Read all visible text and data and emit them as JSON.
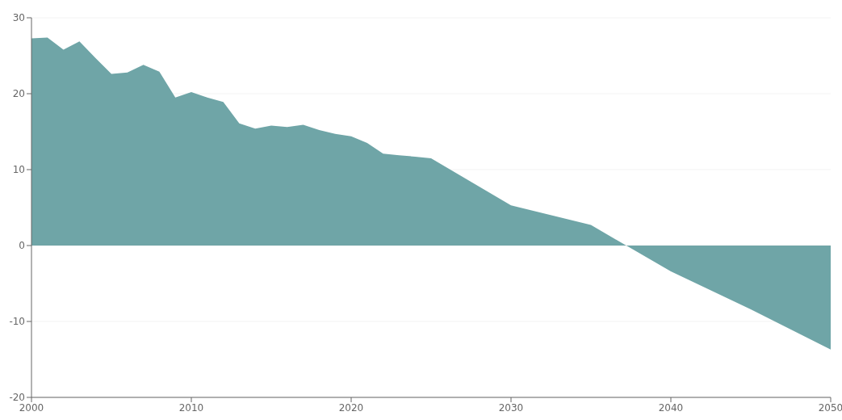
{
  "chart_data": {
    "type": "area",
    "x": [
      2000,
      2001,
      2002,
      2003,
      2004,
      2005,
      2006,
      2007,
      2008,
      2009,
      2010,
      2011,
      2012,
      2013,
      2014,
      2015,
      2016,
      2017,
      2018,
      2019,
      2020,
      2021,
      2022,
      2023,
      2024,
      2025,
      2030,
      2035,
      2040,
      2045,
      2050
    ],
    "values": [
      27.3,
      27.4,
      25.8,
      26.9,
      24.7,
      22.6,
      22.8,
      23.8,
      22.9,
      19.5,
      20.2,
      19.5,
      18.9,
      16.1,
      15.4,
      15.8,
      15.6,
      15.9,
      15.2,
      14.7,
      14.4,
      13.5,
      12.1,
      11.9,
      11.7,
      11.5,
      5.3,
      2.7,
      -3.4,
      -8.4,
      -13.7
    ],
    "color": "#6fa5a7",
    "xlim": [
      2000,
      2050
    ],
    "xticks": [
      2000,
      2010,
      2020,
      2030,
      2040,
      2050
    ],
    "ylim": [
      -20,
      30
    ],
    "yticks": [
      -20,
      -10,
      0,
      10,
      20,
      30
    ],
    "grid": "y"
  }
}
